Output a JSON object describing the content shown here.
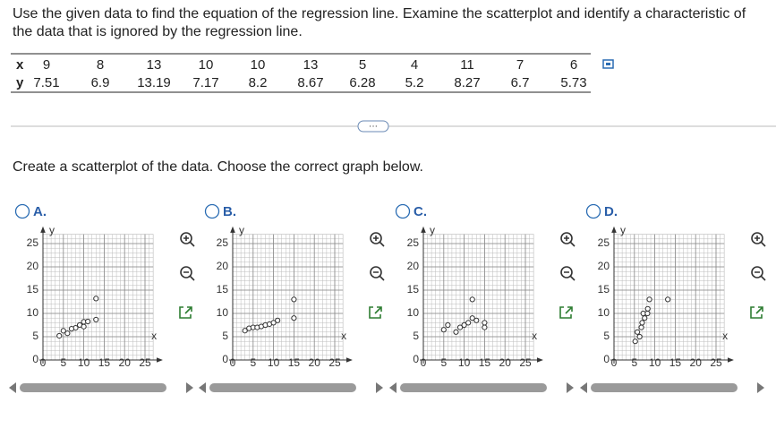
{
  "question": [
    "Use the given data to find the equation of the regression line. Examine the scatterplot and identify a characteristic of",
    "the data that is ignored by the regression line."
  ],
  "table": {
    "rows": [
      [
        "x",
        9,
        8,
        13,
        10,
        10,
        13,
        5,
        4,
        11,
        7,
        6
      ],
      [
        "y",
        7.51,
        6.9,
        13.19,
        7.17,
        8.2,
        8.67,
        6.28,
        5.2,
        8.27,
        6.7,
        5.73
      ]
    ]
  },
  "instruction": "Create a scatterplot of the data. Choose the correct graph below.",
  "options": [
    {
      "label": "A.",
      "chart": {
        "type": "scatter",
        "x": [
          9,
          8,
          13,
          10,
          10,
          13,
          5,
          4,
          11,
          7,
          6
        ],
        "y": [
          7.51,
          6.9,
          13.19,
          7.17,
          8.2,
          8.67,
          6.28,
          5.2,
          8.27,
          6.7,
          5.73
        ],
        "xlim": [
          0,
          27
        ],
        "ylim": [
          0,
          27
        ],
        "xticks": [
          0,
          5,
          10,
          15,
          20,
          25
        ],
        "yticks": [
          0,
          5,
          10,
          15,
          20,
          25
        ],
        "x_label": "x",
        "y_label": "y"
      }
    },
    {
      "label": "B.",
      "chart": {
        "type": "scatter",
        "x": [
          3,
          4,
          5,
          6,
          7,
          8,
          9,
          10,
          11,
          15,
          15
        ],
        "y": [
          6.3,
          6.8,
          7,
          7,
          7.2,
          7.5,
          7.7,
          8,
          8.5,
          9,
          13
        ],
        "xlim": [
          0,
          27
        ],
        "ylim": [
          0,
          27
        ],
        "xticks": [
          0,
          5,
          10,
          15,
          20,
          25
        ],
        "yticks": [
          0,
          5,
          10,
          15,
          20,
          25
        ],
        "x_label": "x",
        "y_label": "y"
      }
    },
    {
      "label": "C.",
      "chart": {
        "type": "scatter",
        "x": [
          5,
          6,
          8,
          9,
          10,
          11,
          12,
          13,
          12,
          15,
          15
        ],
        "y": [
          6.5,
          7.5,
          6,
          7,
          7.5,
          8,
          9,
          8.5,
          13,
          7,
          8
        ],
        "xlim": [
          0,
          27
        ],
        "ylim": [
          0,
          27
        ],
        "xticks": [
          0,
          5,
          10,
          15,
          20,
          25
        ],
        "yticks": [
          0,
          5,
          10,
          15,
          20,
          25
        ],
        "x_label": "x",
        "y_label": "y"
      }
    },
    {
      "label": "D.",
      "chart": {
        "type": "scatter",
        "x": [
          7.51,
          6.9,
          13.19,
          7.17,
          8.2,
          8.67,
          6.28,
          5.2,
          8.27,
          6.7,
          5.73
        ],
        "y": [
          9,
          8,
          13,
          10,
          10,
          13,
          5,
          4,
          11,
          7,
          6
        ],
        "xlim": [
          0,
          27
        ],
        "ylim": [
          0,
          27
        ],
        "xticks": [
          0,
          5,
          10,
          15,
          20,
          25
        ],
        "yticks": [
          0,
          5,
          10,
          15,
          20,
          25
        ],
        "x_label": "x",
        "y_label": "y"
      }
    }
  ]
}
